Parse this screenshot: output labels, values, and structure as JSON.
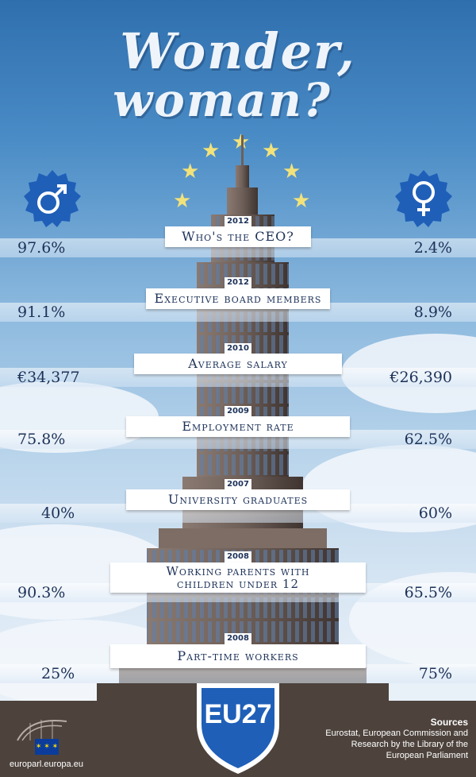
{
  "title_line1": "Wonder,",
  "title_line2": "woman?",
  "icons": {
    "male": "male-symbol-icon",
    "female": "female-symbol-icon",
    "stars": "star-icon"
  },
  "colors": {
    "sky_top": "#2f6fae",
    "text": "#1c3158",
    "badge_blue": "#1f5fb8",
    "footer": "#4d433c",
    "stars": "#f2e27a"
  },
  "rows": [
    {
      "year": "2012",
      "label": "Who's the CEO?",
      "male": "97.6%",
      "female": "2.4%"
    },
    {
      "year": "2012",
      "label": "Executive board members",
      "male": "91.1%",
      "female": "8.9%"
    },
    {
      "year": "2010",
      "label": "Average salary",
      "male": "€34,377",
      "female": "€26,390"
    },
    {
      "year": "2009",
      "label": "Employment rate",
      "male": "75.8%",
      "female": "62.5%"
    },
    {
      "year": "2007",
      "label": "University graduates",
      "male": "40%",
      "female": "60%"
    },
    {
      "year": "2008",
      "label_line1": "Working parents with",
      "label_line2": "children under 12",
      "male": "90.3%",
      "female": "65.5%"
    },
    {
      "year": "2008",
      "label": "Part-time workers",
      "male": "25%",
      "female": "75%"
    }
  ],
  "region": "EU27",
  "footer": {
    "website": "europarl.europa.eu",
    "sources_title": "Sources",
    "sources_line1": "Eurostat, European Commission and",
    "sources_line2": "Research by the Library of the",
    "sources_line3": "European Parliament"
  }
}
